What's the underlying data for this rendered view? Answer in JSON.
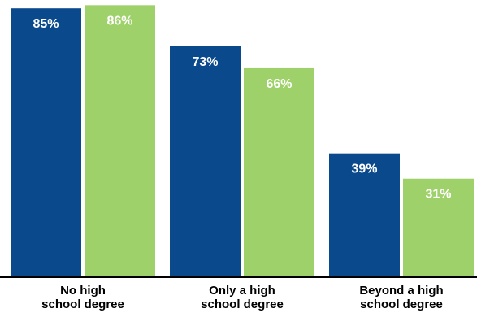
{
  "chart_data": {
    "type": "bar",
    "categories": [
      [
        "No high",
        "school degree"
      ],
      [
        "Only a high",
        "school degree"
      ],
      [
        "Beyond a high",
        "school degree"
      ]
    ],
    "series": [
      {
        "values": [
          85,
          73,
          39
        ],
        "labels": [
          "85%",
          "73%",
          "39%"
        ],
        "color": "#0a4a8c"
      },
      {
        "values": [
          86,
          66,
          31
        ],
        "labels": [
          "86%",
          "66%",
          "31%"
        ],
        "color": "#9fd16a"
      }
    ],
    "ylim": [
      0,
      100
    ],
    "grid": false,
    "legend": "none",
    "axis_color": "#000000"
  }
}
